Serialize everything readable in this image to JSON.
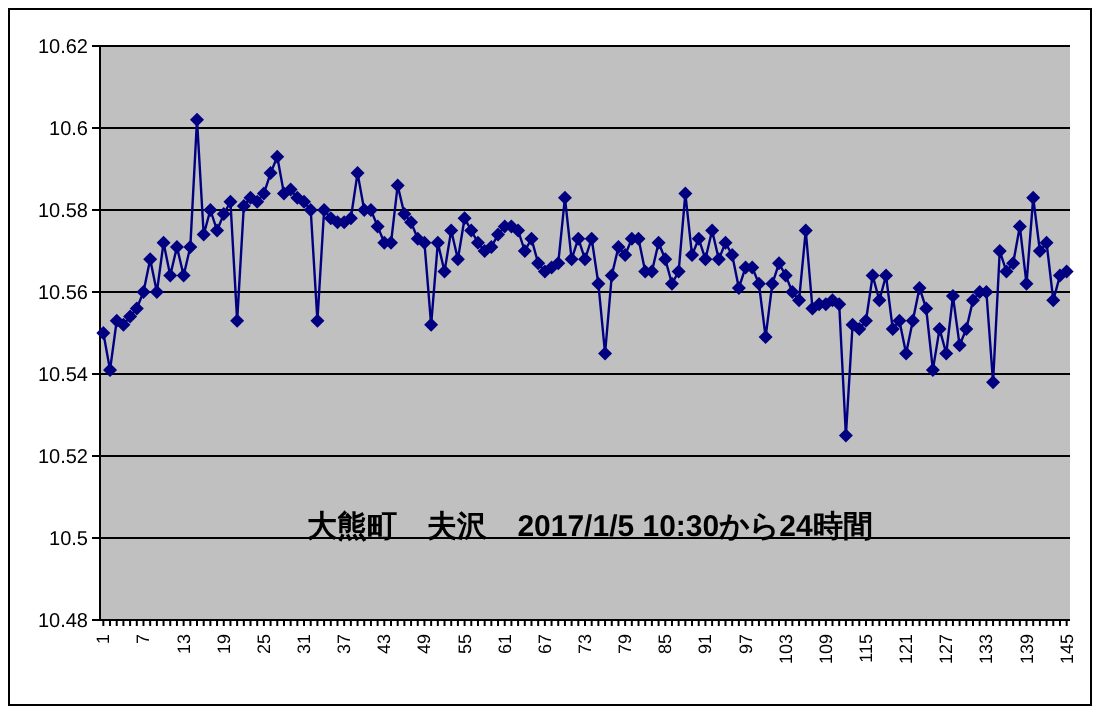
{
  "chart_data": {
    "type": "line",
    "title": "大熊町　夫沢　2017/1/5 10:30から24時間",
    "categories": [
      "1",
      null,
      null,
      null,
      null,
      null,
      "7",
      null,
      null,
      null,
      null,
      null,
      "13",
      null,
      null,
      null,
      null,
      null,
      "19",
      null,
      null,
      null,
      null,
      null,
      "25",
      null,
      null,
      null,
      null,
      null,
      "31",
      null,
      null,
      null,
      null,
      null,
      "37",
      null,
      null,
      null,
      null,
      null,
      "43",
      null,
      null,
      null,
      null,
      null,
      "49",
      null,
      null,
      null,
      null,
      null,
      "55",
      null,
      null,
      null,
      null,
      null,
      "61",
      null,
      null,
      null,
      null,
      null,
      "67",
      null,
      null,
      null,
      null,
      null,
      "73",
      null,
      null,
      null,
      null,
      null,
      "79",
      null,
      null,
      null,
      null,
      null,
      "85",
      null,
      null,
      null,
      null,
      null,
      "91",
      null,
      null,
      null,
      null,
      null,
      "97",
      null,
      null,
      null,
      null,
      null,
      "103",
      null,
      null,
      null,
      null,
      null,
      "109",
      null,
      null,
      null,
      null,
      null,
      "115",
      null,
      null,
      null,
      null,
      null,
      "121",
      null,
      null,
      null,
      null,
      null,
      "127",
      null,
      null,
      null,
      null,
      null,
      "133",
      null,
      null,
      null,
      null,
      null,
      "139",
      null,
      null,
      null,
      null,
      null,
      "145"
    ],
    "series": [
      {
        "color": "#000080",
        "values": [
          10.55,
          10.541,
          10.553,
          10.552,
          10.554,
          10.556,
          10.56,
          10.568,
          10.56,
          10.572,
          10.564,
          10.571,
          10.564,
          10.571,
          10.602,
          10.574,
          10.58,
          10.575,
          10.579,
          10.582,
          10.553,
          10.581,
          10.583,
          10.582,
          10.584,
          10.589,
          10.593,
          10.584,
          10.585,
          10.583,
          10.582,
          10.58,
          10.553,
          10.58,
          10.578,
          10.577,
          10.577,
          10.578,
          10.589,
          10.58,
          10.58,
          10.576,
          10.572,
          10.572,
          10.586,
          10.579,
          10.577,
          10.573,
          10.572,
          10.552,
          10.572,
          10.565,
          10.575,
          10.568,
          10.578,
          10.575,
          10.572,
          10.57,
          10.571,
          10.574,
          10.576,
          10.576,
          10.575,
          10.57,
          10.573,
          10.567,
          10.565,
          10.566,
          10.567,
          10.583,
          10.568,
          10.573,
          10.568,
          10.573,
          10.562,
          10.545,
          10.564,
          10.571,
          10.569,
          10.573,
          10.573,
          10.565,
          10.565,
          10.572,
          10.568,
          10.562,
          10.565,
          10.584,
          10.569,
          10.573,
          10.568,
          10.575,
          10.568,
          10.572,
          10.569,
          10.561,
          10.566,
          10.566,
          10.562,
          10.549,
          10.562,
          10.567,
          10.564,
          10.56,
          10.558,
          10.575,
          10.556,
          10.557,
          10.557,
          10.558,
          10.557,
          10.525,
          10.552,
          10.551,
          10.553,
          10.564,
          10.558,
          10.564,
          10.551,
          10.553,
          10.545,
          10.553,
          10.561,
          10.556,
          10.541,
          10.551,
          10.545,
          10.559,
          10.547,
          10.551,
          10.558,
          10.56,
          10.56,
          10.538,
          10.57,
          10.565,
          10.567,
          10.576,
          10.562,
          10.583,
          10.57,
          10.572,
          10.558,
          10.564,
          10.565
        ]
      }
    ],
    "ylim": [
      10.48,
      10.62
    ],
    "yticks": [
      10.48,
      10.5,
      10.52,
      10.54,
      10.56,
      10.58,
      10.6,
      10.62
    ],
    "grid": "y",
    "marker": "diamond",
    "line_style": "solid"
  }
}
